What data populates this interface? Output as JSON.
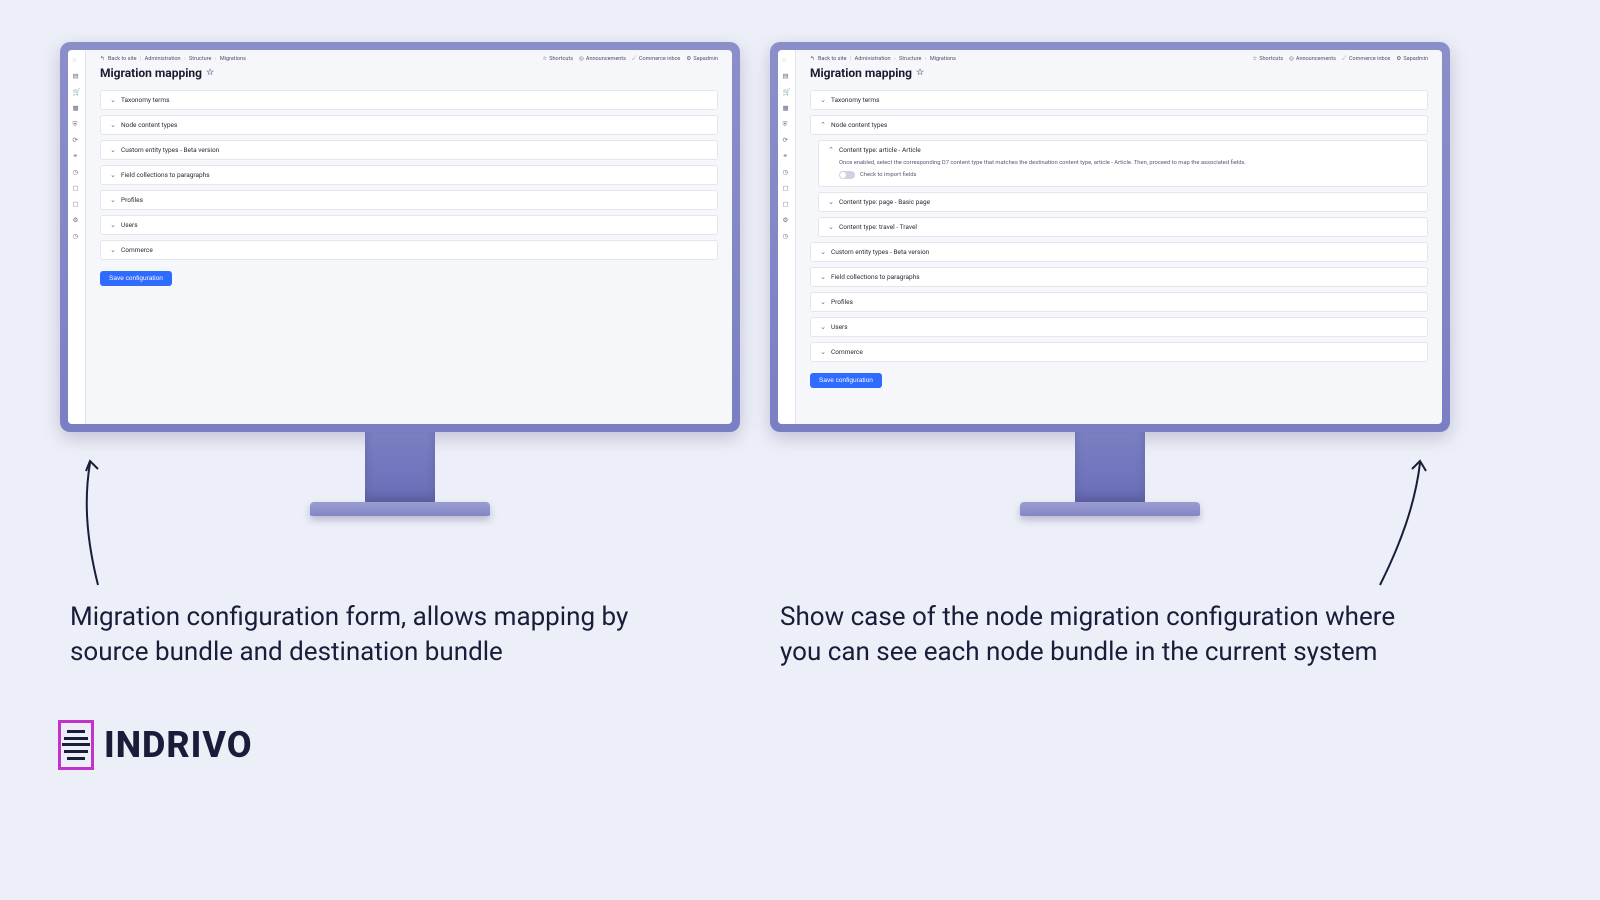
{
  "infographic": {
    "background_color": "#edeff8",
    "caption_fontsize": 26,
    "caption_color": "#1a1c3a"
  },
  "breadcrumb": {
    "back": "Back to site",
    "items": [
      "Administration",
      "Structure",
      "Migrations"
    ]
  },
  "toplinks": {
    "shortcuts": "Shortcuts",
    "announcements": "Announcements",
    "commerce": "Commerce inbox",
    "user": "Sapadmin"
  },
  "page": {
    "title": "Migration mapping"
  },
  "left_screen": {
    "sections": [
      "Taxonomy terms",
      "Node content types",
      "Custom entity types - Beta version",
      "Field collections to paragraphs",
      "Profiles",
      "Users",
      "Commerce"
    ]
  },
  "right_screen": {
    "before_node": [
      "Taxonomy terms"
    ],
    "node_label": "Node content types",
    "article": {
      "label": "Content type: article - Article",
      "help": "Once enabled, select the corresponding D7 content type that matches the destination content type, article - Article. Then, proceed to map the associated fields.",
      "toggle_label": "Check to import fields"
    },
    "node_children_closed": [
      "Content type: page - Basic page",
      "Content type: travel - Travel"
    ],
    "after_node": [
      "Custom entity types - Beta version",
      "Field collections to paragraphs",
      "Profiles",
      "Users",
      "Commerce"
    ]
  },
  "buttons": {
    "save": "Save configuration"
  },
  "captions": {
    "left": "Migration configuration form, allows mapping by source bundle and destination bundle",
    "right": "Show case of the node migration configuration where you can see each node bundle in the current system"
  },
  "logo": {
    "text": "INDRIVO",
    "mark_color": "#c233cc"
  },
  "colors": {
    "bezel": "#7a7fc3",
    "primary_button": "#2f6bff",
    "border": "#e4e6ef",
    "text": "#1a1c3a"
  }
}
